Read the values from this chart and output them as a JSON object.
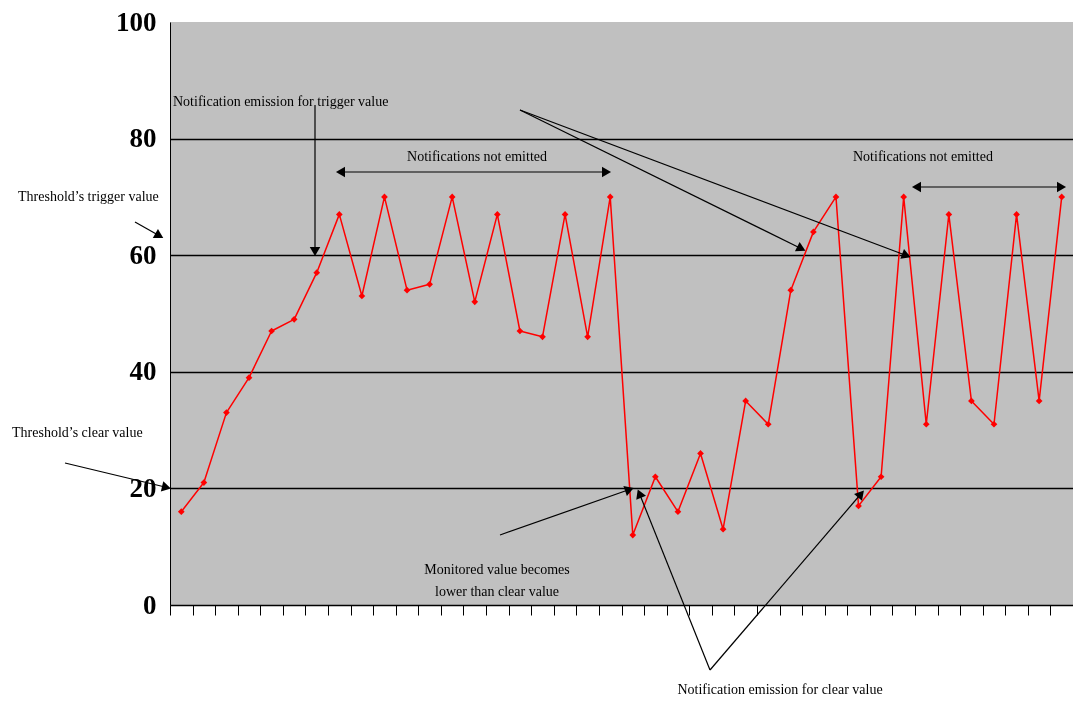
{
  "chart_data": {
    "type": "line",
    "categories": [
      null,
      null,
      null,
      null,
      null,
      null,
      null,
      null,
      null,
      null,
      null,
      null,
      null,
      null,
      null,
      null,
      null,
      null,
      null,
      null,
      null,
      null,
      null,
      null,
      null,
      null,
      null,
      null,
      null,
      null,
      null,
      null,
      null,
      null,
      null,
      null,
      null,
      null,
      null,
      null
    ],
    "series": [
      {
        "color": "#ff0000",
        "values": [
          16,
          21,
          33,
          39,
          47,
          49,
          57,
          67,
          53,
          70,
          54,
          55,
          70,
          52,
          67,
          47,
          46,
          67,
          46,
          70,
          12,
          22,
          16,
          26,
          13,
          35,
          31,
          54,
          64,
          70,
          17,
          22,
          70,
          31,
          67,
          35,
          31,
          67,
          35,
          70
        ]
      }
    ],
    "ylim": [
      0,
      100
    ],
    "yticks": [
      0,
      20,
      40,
      60,
      80,
      100
    ],
    "grid": "y",
    "tick_labels": "y",
    "marker": "diamond",
    "line_style": "solid",
    "annotations": [
      "Notification emission for trigger value",
      "Notifications not emitted",
      "Notifications not emitted",
      "Threshold’s trigger value",
      "Threshold’s clear value",
      "Monitored value becomes\nlower than clear value",
      "Notification emission for clear  value"
    ]
  }
}
